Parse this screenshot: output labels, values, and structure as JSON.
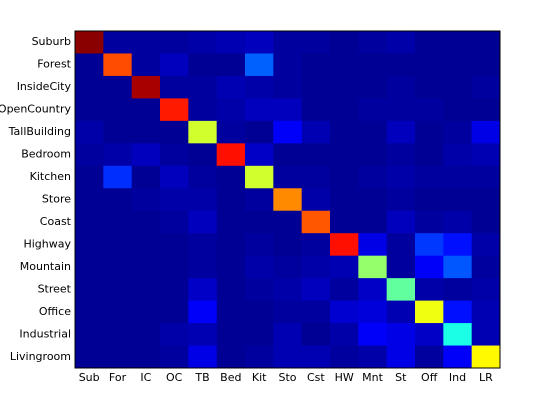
{
  "chart_data": {
    "type": "heatmap",
    "x_categories": [
      "Sub",
      "For",
      "IC",
      "OC",
      "TB",
      "Bed",
      "Kit",
      "Sto",
      "Cst",
      "HW",
      "Mnt",
      "St",
      "Off",
      "Ind",
      "LR"
    ],
    "y_categories": [
      "Suburb",
      "Forest",
      "InsideCity",
      "OpenCountry",
      "TallBuilding",
      "Bedroom",
      "Kitchen",
      "Store",
      "Coast",
      "Highway",
      "Mountain",
      "Street",
      "Office",
      "Industrial",
      "Livingroom"
    ],
    "values": [
      [
        0.99,
        0.03,
        0.03,
        0.03,
        0.04,
        0.05,
        0.06,
        0.03,
        0.03,
        0.02,
        0.03,
        0.04,
        0.02,
        0.02,
        0.02
      ],
      [
        0.02,
        0.8,
        0.03,
        0.06,
        0.02,
        0.02,
        0.22,
        0.03,
        0.02,
        0.02,
        0.02,
        0.02,
        0.02,
        0.02,
        0.02
      ],
      [
        0.02,
        0.02,
        0.96,
        0.03,
        0.03,
        0.05,
        0.04,
        0.03,
        0.02,
        0.02,
        0.02,
        0.03,
        0.02,
        0.02,
        0.03
      ],
      [
        0.02,
        0.02,
        0.02,
        0.85,
        0.03,
        0.04,
        0.06,
        0.06,
        0.02,
        0.02,
        0.03,
        0.03,
        0.03,
        0.02,
        0.02
      ],
      [
        0.04,
        0.02,
        0.02,
        0.02,
        0.58,
        0.03,
        0.02,
        0.12,
        0.05,
        0.02,
        0.02,
        0.06,
        0.02,
        0.03,
        0.1
      ],
      [
        0.03,
        0.04,
        0.06,
        0.03,
        0.02,
        0.86,
        0.07,
        0.02,
        0.02,
        0.02,
        0.02,
        0.03,
        0.02,
        0.04,
        0.05
      ],
      [
        0.02,
        0.17,
        0.02,
        0.06,
        0.03,
        0.02,
        0.58,
        0.03,
        0.03,
        0.02,
        0.03,
        0.04,
        0.03,
        0.03,
        0.03
      ],
      [
        0.02,
        0.02,
        0.03,
        0.04,
        0.04,
        0.02,
        0.03,
        0.74,
        0.04,
        0.02,
        0.02,
        0.03,
        0.02,
        0.02,
        0.02
      ],
      [
        0.02,
        0.02,
        0.02,
        0.03,
        0.06,
        0.02,
        0.02,
        0.02,
        0.79,
        0.02,
        0.02,
        0.06,
        0.03,
        0.04,
        0.02
      ],
      [
        0.02,
        0.02,
        0.02,
        0.02,
        0.03,
        0.02,
        0.03,
        0.02,
        0.03,
        0.86,
        0.1,
        0.03,
        0.18,
        0.14,
        0.04
      ],
      [
        0.02,
        0.02,
        0.02,
        0.02,
        0.03,
        0.02,
        0.04,
        0.03,
        0.04,
        0.05,
        0.52,
        0.03,
        0.12,
        0.21,
        0.03
      ],
      [
        0.02,
        0.02,
        0.02,
        0.02,
        0.07,
        0.02,
        0.03,
        0.04,
        0.06,
        0.03,
        0.07,
        0.47,
        0.04,
        0.03,
        0.04
      ],
      [
        0.02,
        0.02,
        0.02,
        0.02,
        0.12,
        0.02,
        0.02,
        0.03,
        0.03,
        0.08,
        0.09,
        0.05,
        0.61,
        0.14,
        0.05
      ],
      [
        0.02,
        0.02,
        0.02,
        0.04,
        0.05,
        0.02,
        0.02,
        0.05,
        0.02,
        0.04,
        0.12,
        0.1,
        0.07,
        0.4,
        0.05
      ],
      [
        0.02,
        0.02,
        0.02,
        0.03,
        0.1,
        0.02,
        0.03,
        0.05,
        0.05,
        0.03,
        0.04,
        0.1,
        0.03,
        0.12,
        0.63
      ]
    ],
    "colormap": "jet",
    "zlim": [
      0,
      1
    ]
  }
}
